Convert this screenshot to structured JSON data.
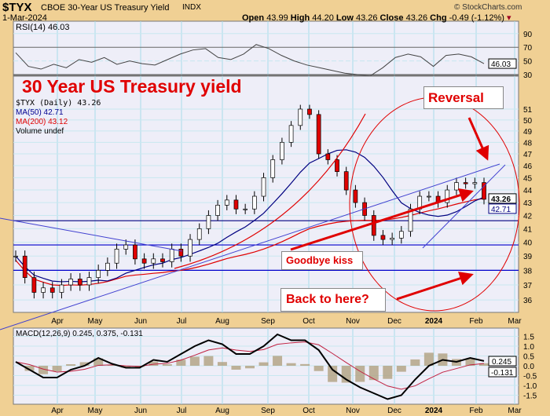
{
  "header": {
    "symbol": "$TYX",
    "name": "CBOE 30-Year US Treasury Yield",
    "exchange": "INDX",
    "date": "1-Mar-2024",
    "copyright": "© StockCharts.com",
    "open_label": "Open",
    "open": "43.99",
    "high_label": "High",
    "high": "44.20",
    "low_label": "Low",
    "low": "43.26",
    "close_label": "Close",
    "close": "43.26",
    "chg_label": "Chg",
    "chg": "-0.49 (-1.12%)"
  },
  "annotations": {
    "title": "30 Year US Treasury yield",
    "reversal": "Reversal",
    "goodbye": "Goodbye kiss",
    "back": "Back to here?"
  },
  "colors": {
    "red": "#e00000",
    "blue": "#0000cc",
    "navy": "#000080",
    "frame": "#f0d094",
    "panel": "#eeeef8"
  },
  "chart_data": [
    {
      "type": "line",
      "title": "RSI(14) 46.03",
      "label": "RSI(14)",
      "value": "46.03",
      "yticks": [
        "90",
        "70",
        "50",
        "30"
      ],
      "ylim": [
        20,
        100
      ],
      "values": [
        62,
        42,
        38,
        45,
        40,
        52,
        48,
        55,
        45,
        50,
        46,
        44,
        52,
        60,
        66,
        68,
        55,
        52,
        60,
        74,
        68,
        58,
        50,
        44,
        40,
        36,
        32,
        30,
        28,
        40,
        55,
        60,
        56,
        42,
        58,
        60,
        56,
        46
      ]
    },
    {
      "type": "candlestick",
      "title": "$TYX (Daily) 43.26",
      "legend": {
        "price": "$TYX (Daily) 43.26",
        "ma50": "MA(50) 42.71",
        "ma200": "MA(200) 43.12",
        "volume": "Volume undef"
      },
      "scale": "log",
      "yticks": [
        "51",
        "50",
        "49",
        "48",
        "47",
        "46",
        "45",
        "44",
        "43",
        "42",
        "41",
        "40",
        "39",
        "38",
        "37",
        "36"
      ],
      "last_labels": {
        "close": "43.26",
        "ma50": "42.71"
      },
      "xticks": [
        "Apr",
        "May",
        "Jun",
        "Jul",
        "Aug",
        "Sep",
        "Oct",
        "Nov",
        "Dec",
        "2024",
        "Feb",
        "Mar"
      ],
      "weekly_close": [
        39.0,
        37.5,
        36.5,
        36.8,
        36.5,
        37.0,
        37.4,
        37.0,
        37.5,
        38.0,
        38.5,
        39.5,
        39.8,
        38.8,
        38.5,
        38.8,
        38.6,
        39.5,
        39.0,
        40.2,
        41.0,
        42.0,
        42.8,
        43.2,
        42.5,
        42.5,
        43.5,
        45.0,
        46.5,
        48.0,
        49.5,
        51.0,
        50.5,
        47.0,
        46.5,
        45.5,
        44.0,
        43.0,
        42.0,
        40.5,
        40.2,
        40.3,
        40.8,
        42.5,
        43.5,
        43.5,
        43.0,
        44.0,
        44.6,
        44.5,
        44.6,
        43.26
      ],
      "horizontal_lines": [
        41.6,
        39.8,
        38.0
      ]
    },
    {
      "type": "line",
      "title": "MACD(12,26,9) 0.245, 0.375, -0.131",
      "label": "MACD(12,26,9)",
      "macd": "0.245",
      "signal": "0.375",
      "hist": "-0.131",
      "yticks": [
        "1.5",
        "1.0",
        "0.5",
        "0.0",
        "-0.5",
        "-1.0",
        "-1.5"
      ],
      "ylim": [
        -1.9,
        1.9
      ],
      "values": [
        0.2,
        -0.2,
        -0.6,
        -0.6,
        -0.2,
        0,
        0.4,
        0.1,
        -0.1,
        -0.1,
        0.3,
        0.2,
        0.6,
        1.0,
        1.3,
        1.1,
        0.6,
        0.6,
        1.0,
        1.6,
        1.3,
        1.3,
        0.8,
        -0.2,
        -0.7,
        -1.1,
        -1.4,
        -1.7,
        -1.5,
        -0.7,
        0.0,
        0.3,
        0.2,
        0.4,
        0.245
      ]
    }
  ]
}
